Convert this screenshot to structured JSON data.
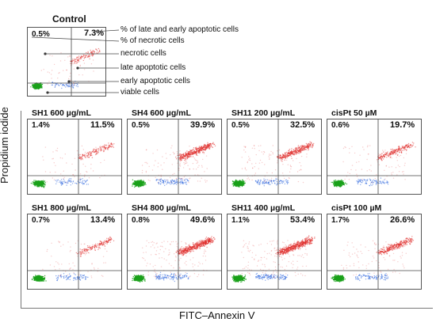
{
  "y_axis_label": "Propidium iodide",
  "x_axis_label": "FITC–Annexin V",
  "control": {
    "title": "Control",
    "ul_pct": "0.5%",
    "ur_pct": "7.3%",
    "annotations": [
      "% of late and early apoptotic cells",
      "% of necrotic cells",
      "necrotic cells",
      "late apoptotic cells",
      "early apoptotic cells",
      "viable cells"
    ]
  },
  "chart_data": {
    "type": "scatter",
    "panels": [
      {
        "title": "SH1  600 µg/mL",
        "ul": "1.4%",
        "ur": "11.5%"
      },
      {
        "title": "SH4  600 µg/mL",
        "ul": "0.5%",
        "ur": "39.9%"
      },
      {
        "title": "SH11  200 µg/mL",
        "ul": "0.5%",
        "ur": "32.5%"
      },
      {
        "title": "cisPt  50 µM",
        "ul": "0.6%",
        "ur": "19.7%"
      },
      {
        "title": "SH1  800 µg/mL",
        "ul": "0.7%",
        "ur": "13.4%"
      },
      {
        "title": "SH4  800 µg/mL",
        "ul": "0.8%",
        "ur": "49.6%"
      },
      {
        "title": "SH11  400 µg/mL",
        "ul": "1.1%",
        "ur": "53.4%"
      },
      {
        "title": "cisPt  100 µM",
        "ul": "1.7%",
        "ur": "26.6%"
      }
    ],
    "colors": {
      "viable": "#1aa11a",
      "early": "#3b6fe0",
      "late": "#e0302e",
      "necrotic": "#e0302e"
    }
  }
}
